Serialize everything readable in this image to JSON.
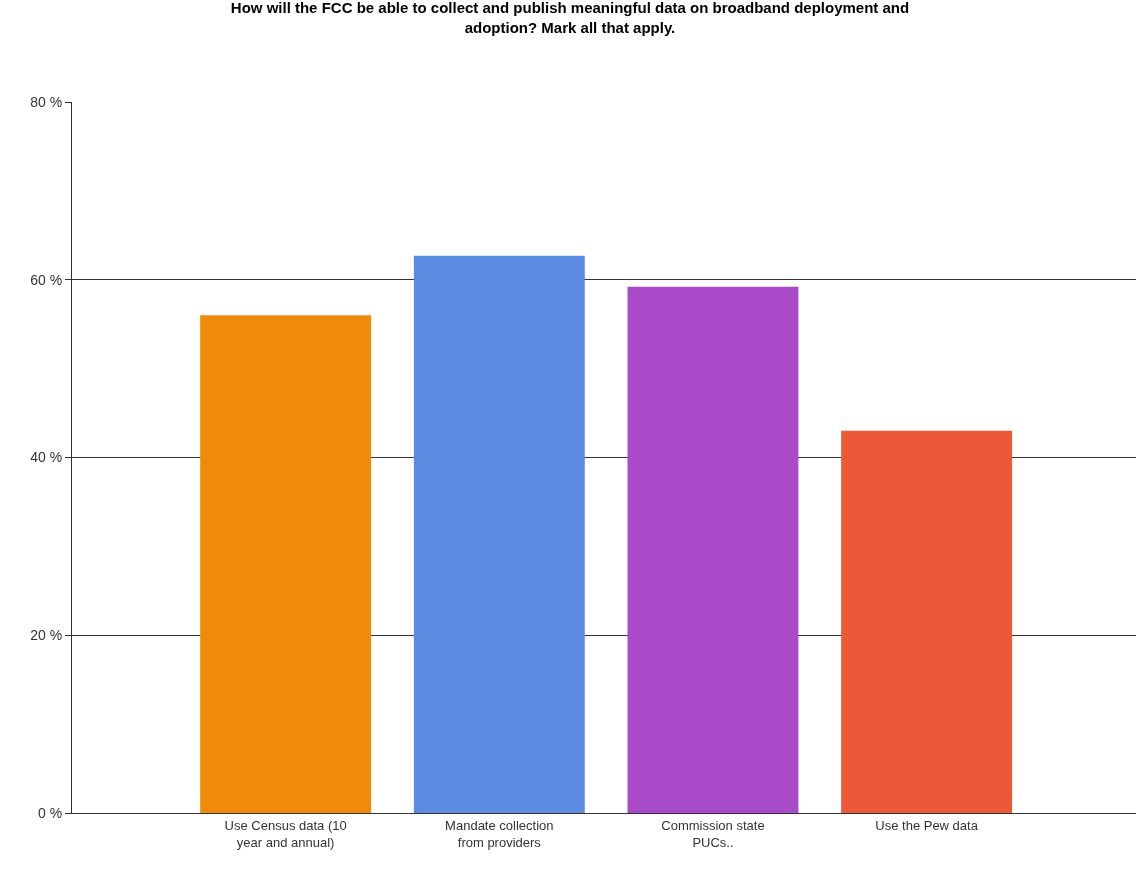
{
  "chart_data": {
    "type": "bar",
    "title": "How will the FCC be able to collect and publish meaningful data on broadband deployment and adoption? Mark all that apply.",
    "categories": [
      "Use Census data (10 year and annual)",
      "Mandate collection from providers",
      "Commission state PUCs..",
      "Use the Pew data"
    ],
    "values": [
      56.0,
      62.7,
      59.2,
      43.0
    ],
    "colors": [
      "#f08a0c",
      "#5a8be0",
      "#a94ac9",
      "#ec5838"
    ],
    "ylim": [
      0,
      80
    ],
    "yticks": [
      {
        "value": 0,
        "label": "0 %"
      },
      {
        "value": 20,
        "label": "20 %"
      },
      {
        "value": 40,
        "label": "40 %"
      },
      {
        "value": 60,
        "label": "60 %"
      },
      {
        "value": 80,
        "label": "80 %"
      }
    ],
    "grid": "y",
    "legend": false
  }
}
